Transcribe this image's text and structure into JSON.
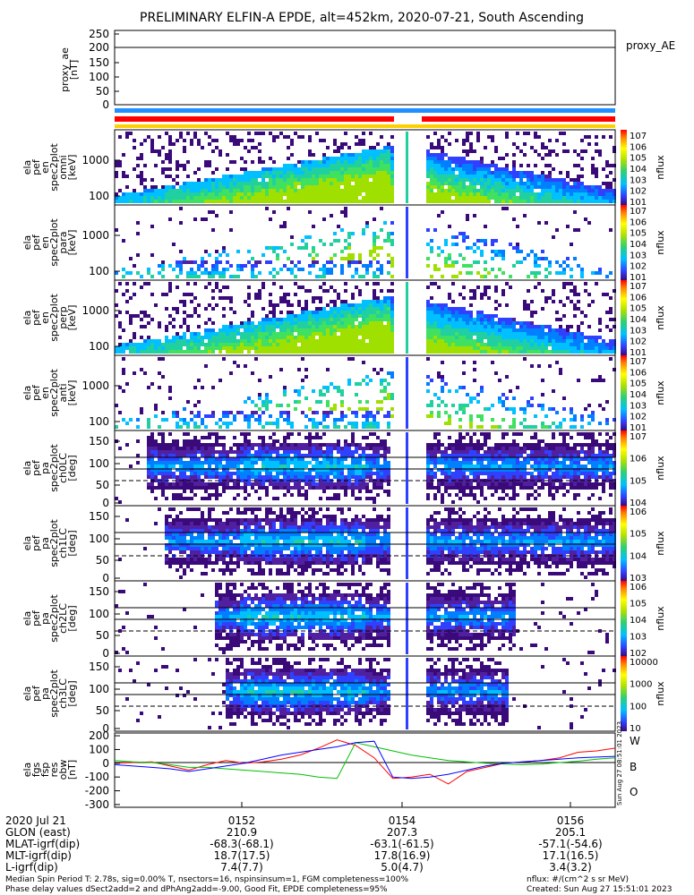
{
  "title": "PRELIMINARY ELFIN-A EPDE, alt=452km, 2020-07-21, South Ascending",
  "colors": {
    "orbit_bar_red": "#ff0000",
    "orbit_bar_yellow": "#ffd000",
    "orbit_bar_blue": "#1f8fff",
    "trace_W": "#ff0000",
    "trace_B": "#00c000",
    "trace_O": "#0000ff",
    "proxy_line": "#000000"
  },
  "panels": {
    "ae": {
      "ylabel": [
        "proxy_ae",
        "[nT]"
      ],
      "legend": "proxy_AE",
      "ticks": [
        "250",
        "200",
        "150",
        "100",
        "50",
        "0"
      ]
    },
    "spec": [
      {
        "ylabel": [
          "ela",
          "pef",
          "en",
          "spec2plot",
          "omni",
          "[keV]"
        ],
        "cb_ticks": [
          "107",
          "106",
          "105",
          "104",
          "103",
          "102",
          "101"
        ],
        "cb_label": "nflux"
      },
      {
        "ylabel": [
          "ela",
          "pef",
          "en",
          "spec2plot",
          "para",
          "[keV]"
        ],
        "cb_ticks": [
          "107",
          "106",
          "105",
          "104",
          "103",
          "102",
          "101"
        ],
        "cb_label": "nflux"
      },
      {
        "ylabel": [
          "ela",
          "pef",
          "en",
          "spec2plot",
          "perp",
          "[keV]"
        ],
        "cb_ticks": [
          "107",
          "106",
          "105",
          "104",
          "103",
          "102",
          "101"
        ],
        "cb_label": "nflux"
      },
      {
        "ylabel": [
          "ela",
          "pef",
          "en",
          "spec2plot",
          "anti",
          "[keV]"
        ],
        "cb_ticks": [
          "107",
          "106",
          "105",
          "104",
          "103",
          "102",
          "101"
        ],
        "cb_label": "nflux"
      }
    ],
    "pa": [
      {
        "ylabel": [
          "ela",
          "pef",
          "pa",
          "spec2plot",
          "ch0LC",
          "[deg]"
        ],
        "cb_ticks": [
          "107",
          "106",
          "105",
          "104"
        ],
        "cb_label": "nflux"
      },
      {
        "ylabel": [
          "ela",
          "pef",
          "pa",
          "spec2plot",
          "ch1LC",
          "[deg]"
        ],
        "cb_ticks": [
          "106",
          "105",
          "104",
          "103"
        ],
        "cb_label": "nflux"
      },
      {
        "ylabel": [
          "ela",
          "pef",
          "pa",
          "spec2plot",
          "ch2LC",
          "[deg]"
        ],
        "cb_ticks": [
          "106",
          "105",
          "104",
          "103",
          "102"
        ],
        "cb_label": "nflux"
      },
      {
        "ylabel": [
          "ela",
          "pef",
          "pa",
          "spec2plot",
          "ch3LC",
          "[deg]"
        ],
        "cb_ticks": [
          "10000",
          "1000",
          "100",
          "10"
        ],
        "cb_label": "nflux"
      }
    ],
    "spec_ticks": [
      "1000",
      "100"
    ],
    "pa_ticks": [
      "150",
      "100",
      "50",
      "0"
    ],
    "mag": {
      "ylabel": [
        "ela",
        "fgs",
        "fsp",
        "res",
        "obw",
        "[nT]"
      ],
      "ticks": [
        "200",
        "100",
        "0",
        "-100",
        "-200",
        "-300"
      ],
      "legend": [
        "W",
        "B",
        "O"
      ],
      "side_label": "Sun Aug 27 08:51:01 2023"
    }
  },
  "chart_data": {
    "type": "line",
    "title": "PRELIMINARY ELFIN-A EPDE, alt=452km, 2020-07-21, South Ascending",
    "time_ticks": [
      "0152",
      "0154",
      "0156"
    ],
    "spectrogram_energy_ylim_keV": [
      60,
      6000
    ],
    "spectrogram_pitch_ylim_deg": [
      0,
      180
    ],
    "proxy_ae_ylim": [
      0,
      260
    ],
    "proxy_ae_value": 200,
    "mag_ylim": [
      -320,
      220
    ],
    "mag_series": [
      {
        "name": "W",
        "values": [
          0,
          5,
          10,
          -20,
          -50,
          -10,
          20,
          0,
          10,
          30,
          60,
          110,
          170,
          130,
          40,
          -110,
          -100,
          -80,
          -150,
          -60,
          -30,
          0,
          10,
          20,
          40,
          80,
          90,
          110
        ]
      },
      {
        "name": "B",
        "values": [
          20,
          10,
          5,
          -10,
          -30,
          -30,
          -40,
          -50,
          -60,
          -70,
          -80,
          -100,
          -110,
          150,
          120,
          90,
          60,
          40,
          20,
          10,
          0,
          -5,
          -10,
          -5,
          5,
          15,
          30,
          40
        ]
      },
      {
        "name": "O",
        "values": [
          -10,
          -20,
          -30,
          -40,
          -60,
          -40,
          -20,
          0,
          30,
          60,
          80,
          100,
          120,
          150,
          160,
          -100,
          -110,
          -100,
          -80,
          -50,
          -20,
          0,
          10,
          20,
          30,
          40,
          45,
          50
        ]
      }
    ]
  },
  "info": {
    "rows": [
      {
        "label": "2020 Jul 21",
        "values": [
          "0152",
          "0154",
          "0156"
        ]
      },
      {
        "label": "GLON (east)",
        "values": [
          "210.9",
          "207.3",
          "205.1"
        ]
      },
      {
        "label": "MLAT-igrf(dip)",
        "values": [
          "-68.3(-68.1)",
          "-63.1(-61.5)",
          "-57.1(-54.6)"
        ]
      },
      {
        "label": "MLT-igrf(dip)",
        "values": [
          "18.7(17.5)",
          "17.8(16.9)",
          "17.1(16.5)"
        ]
      },
      {
        "label": "L-igrf(dip)",
        "values": [
          "7.4(7.7)",
          "5.0(4.7)",
          "3.4(3.2)"
        ]
      }
    ],
    "footer_left_1": "Median Spin Period T: 2.78s, sig=0.00% T, nsectors=16, nspinsinsum=1, FGM completeness=100%",
    "footer_left_2": "Phase delay values dSect2add=2 and dPhAng2add=-9.00, Good Fit, EPDE completeness=95%",
    "footer_right_1": "nflux: #/(cm^2 s sr MeV)",
    "footer_right_2": "Created: Sun Aug 27 15:51:01 2023"
  }
}
